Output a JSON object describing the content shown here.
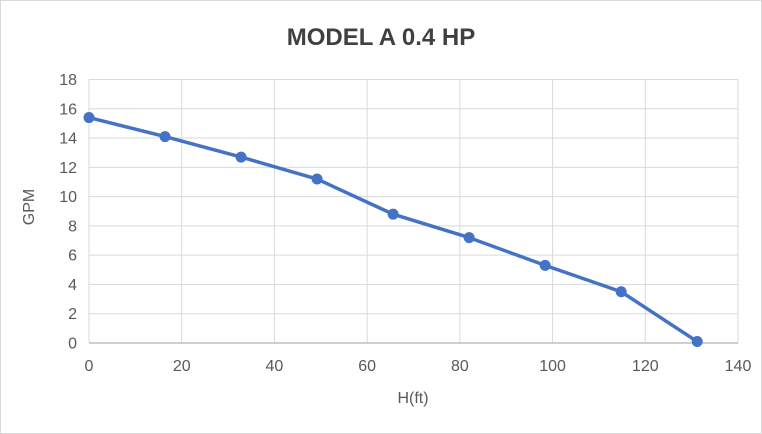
{
  "window": {
    "title": "MODEL A 0.4 HP"
  },
  "chart_data": {
    "type": "line",
    "title": "MODEL A 0.4 HP",
    "xlabel": "H(ft)",
    "ylabel": "GPM",
    "series": [
      {
        "name": "MODEL A 0.4 HP",
        "x": [
          0,
          16.4,
          32.8,
          49.2,
          65.6,
          82.0,
          98.4,
          114.8,
          131.2
        ],
        "y": [
          15.4,
          14.1,
          12.7,
          11.2,
          8.8,
          7.2,
          5.3,
          3.5,
          0.1
        ]
      }
    ],
    "xlim": [
      0,
      140
    ],
    "ylim": [
      0,
      18
    ],
    "x_ticks": [
      0,
      20,
      40,
      60,
      80,
      100,
      120,
      140
    ],
    "y_ticks": [
      0,
      2,
      4,
      6,
      8,
      10,
      12,
      14,
      16,
      18
    ],
    "grid": true,
    "legend_position": "none",
    "marker_style": "circle",
    "colors": {
      "line": "#4472C4",
      "marker": "#4472C4",
      "gridline": "#D9D9D9",
      "axis_line": "#BFBFBF",
      "tick_text": "#595959",
      "axis_title_text": "#595959",
      "title_text": "#404040",
      "chart_border": "#D9D9D9",
      "background": "#FFFFFF"
    }
  }
}
